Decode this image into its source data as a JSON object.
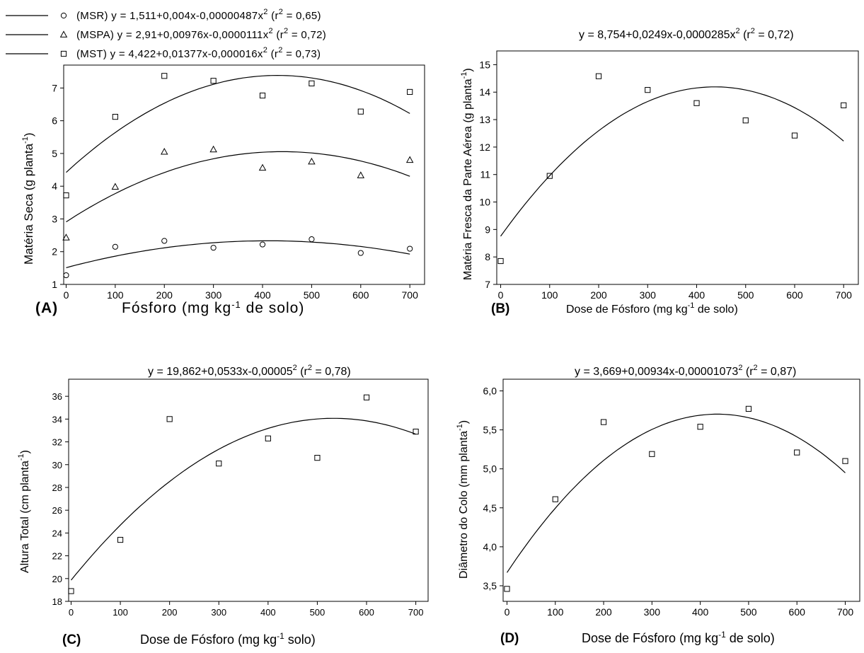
{
  "chart_data": [
    {
      "panel": "A",
      "type": "scatter",
      "panel_label": "(A)",
      "xlabel_main": "Fósforo (mg kg",
      "xlabel_sup": "-1",
      "xlabel_tail": " de solo)",
      "ylabel_main": "Matéria Seca (g planta",
      "ylabel_sup": "-1",
      "ylabel_tail": ")",
      "xlim": [
        -5,
        730
      ],
      "ylim": [
        1,
        7.7
      ],
      "xticks": [
        0,
        100,
        200,
        300,
        400,
        500,
        600,
        700
      ],
      "yticks": [
        1,
        2,
        3,
        4,
        5,
        6,
        7
      ],
      "legend_position": "top-left (above plot)",
      "series": [
        {
          "name": "(MSR)",
          "marker": "circle",
          "equation": "y = 1,511+0,004x-0,00000487x",
          "r2_open": " (r",
          "r2_close": " = 0,65)",
          "coef": [
            1.511,
            0.004,
            -4.87e-06
          ],
          "x": [
            0,
            100,
            200,
            300,
            400,
            500,
            600,
            700
          ],
          "y": [
            1.28,
            2.15,
            2.33,
            2.12,
            2.22,
            2.38,
            1.96,
            2.09
          ]
        },
        {
          "name": "(MSPA)",
          "marker": "triangle",
          "equation": "y = 2,91+0,00976x-0,0000111x",
          "r2_open": " (r",
          "r2_close": " = 0,72)",
          "coef": [
            2.91,
            0.00976,
            -1.11e-05
          ],
          "x": [
            0,
            100,
            200,
            300,
            400,
            500,
            600,
            700
          ],
          "y": [
            2.43,
            3.98,
            5.05,
            5.12,
            4.56,
            4.75,
            4.33,
            4.8
          ]
        },
        {
          "name": "(MST)",
          "marker": "square",
          "equation": "y = 4,422+0,01377x-0,000016x",
          "r2_open": " (r",
          "r2_close": " = 0,73)",
          "coef": [
            4.422,
            0.01377,
            -1.6e-05
          ],
          "x": [
            0,
            100,
            200,
            300,
            400,
            500,
            600,
            700
          ],
          "y": [
            3.72,
            6.12,
            7.37,
            7.22,
            6.77,
            7.14,
            6.28,
            6.88
          ]
        }
      ]
    },
    {
      "panel": "B",
      "type": "scatter",
      "panel_label": "(B)",
      "equation": "y = 8,754+0,0249x-0,0000285x",
      "equation_r2": " (r",
      "equation_tail": " = 0,72)",
      "xlabel_main": "Dose de Fósforo (mg kg",
      "xlabel_sup": "-1",
      "xlabel_tail": " de solo)",
      "ylabel_main": "Matéria Fresca da Parte Aérea (g planta",
      "ylabel_sup": "-1",
      "ylabel_tail": ")",
      "xlim": [
        -8,
        730
      ],
      "ylim": [
        7,
        15.5
      ],
      "xticks": [
        0,
        100,
        200,
        300,
        400,
        500,
        600,
        700
      ],
      "yticks": [
        7,
        8,
        9,
        10,
        11,
        12,
        13,
        14,
        15
      ],
      "coef": [
        8.754,
        0.0249,
        -2.85e-05
      ],
      "x": [
        0,
        100,
        200,
        300,
        400,
        500,
        600,
        700
      ],
      "y": [
        7.85,
        10.95,
        14.58,
        14.08,
        13.6,
        12.97,
        12.42,
        13.52
      ]
    },
    {
      "panel": "C",
      "type": "scatter",
      "panel_label": "(C)",
      "equation": "y = 19,862+0,0533x-0,00005",
      "equation_r2": " (r",
      "equation_tail": " = 0,78)",
      "xlabel_main": "Dose de Fósforo (mg kg",
      "xlabel_sup": "-1",
      "xlabel_tail": " solo)",
      "ylabel_main": "Altura Total (cm planta",
      "ylabel_sup": "-1",
      "ylabel_tail": ")",
      "xlim": [
        -5,
        725
      ],
      "ylim": [
        18,
        37.5
      ],
      "xticks": [
        0,
        100,
        200,
        300,
        400,
        500,
        600,
        700
      ],
      "yticks": [
        18,
        20,
        22,
        24,
        26,
        28,
        30,
        32,
        34,
        36
      ],
      "coef": [
        19.862,
        0.0533,
        -5e-05
      ],
      "x": [
        0,
        100,
        200,
        300,
        400,
        500,
        600,
        700
      ],
      "y": [
        18.9,
        23.4,
        34.0,
        30.1,
        32.3,
        30.6,
        35.9,
        32.9
      ]
    },
    {
      "panel": "D",
      "type": "scatter",
      "panel_label": "(D)",
      "equation": "y = 3,669+0,00934x-0,00001073",
      "equation_r2": " (r",
      "equation_tail": " = 0,87)",
      "xlabel_main": "Dose de Fósforo (mg kg",
      "xlabel_sup": "-1",
      "xlabel_tail": " de solo)",
      "ylabel_main": "Diâmetro do Colo (mm planta",
      "ylabel_sup": "-1",
      "ylabel_tail": ")",
      "xlim": [
        -8,
        730
      ],
      "ylim": [
        3.3,
        6.15
      ],
      "xticks": [
        0,
        100,
        200,
        300,
        400,
        500,
        600,
        700
      ],
      "yticks": [
        "3,5",
        "4,0",
        "4,5",
        "5,0",
        "5,5",
        "6,0"
      ],
      "ytick_values": [
        3.5,
        4.0,
        4.5,
        5.0,
        5.5,
        6.0
      ],
      "coef": [
        3.669,
        0.00934,
        -1.073e-05
      ],
      "x": [
        0,
        100,
        200,
        300,
        400,
        500,
        600,
        700
      ],
      "y": [
        3.46,
        4.61,
        5.6,
        5.19,
        5.54,
        5.77,
        5.21,
        5.1
      ]
    }
  ]
}
